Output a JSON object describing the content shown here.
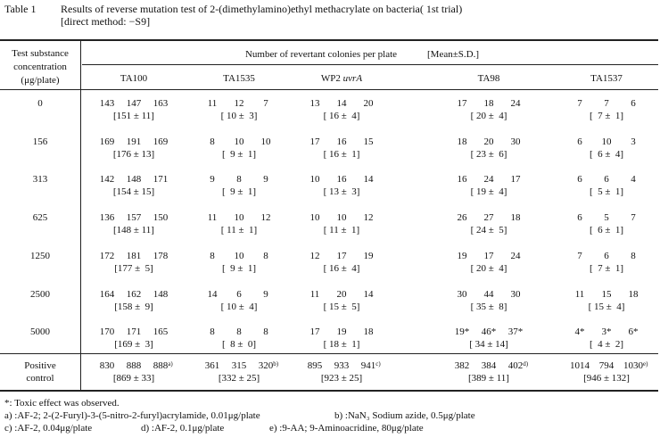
{
  "caption": {
    "label": "Table 1",
    "title": "Results of reverse mutation test of 2-(dimethylamino)ethyl methacrylate on bacteria( 1st trial)",
    "subtitle": "[direct method: −S9]"
  },
  "header": {
    "concentration": [
      "Test substance",
      "concentration",
      "(μg/plate)"
    ],
    "group": "Number of revertant colonies per plate",
    "stat": "[Mean±S.D.]",
    "strains": [
      {
        "name": "TA100"
      },
      {
        "name": "TA1535"
      },
      {
        "name": "WP2",
        "italic": "uvrA"
      },
      {
        "name": "TA98"
      },
      {
        "name": "TA1537"
      }
    ]
  },
  "rows": [
    {
      "concentration": "0",
      "cells": [
        {
          "counts": [
            "143",
            "147",
            "163"
          ],
          "mean": "[151 ± 11]"
        },
        {
          "counts": [
            "11",
            "12",
            "7"
          ],
          "mean": "[ 10 ±  3]"
        },
        {
          "counts": [
            "13",
            "14",
            "20"
          ],
          "mean": "[ 16 ±  4]"
        },
        {
          "counts": [
            "17",
            "18",
            "24"
          ],
          "mean": "[ 20 ±  4]"
        },
        {
          "counts": [
            "7",
            "7",
            "6"
          ],
          "mean": "[  7 ±  1]"
        }
      ]
    },
    {
      "concentration": "156",
      "cells": [
        {
          "counts": [
            "169",
            "191",
            "169"
          ],
          "mean": "[176 ± 13]"
        },
        {
          "counts": [
            "8",
            "10",
            "10"
          ],
          "mean": "[  9 ±  1]"
        },
        {
          "counts": [
            "17",
            "16",
            "15"
          ],
          "mean": "[ 16 ±  1]"
        },
        {
          "counts": [
            "18",
            "20",
            "30"
          ],
          "mean": "[ 23 ±  6]"
        },
        {
          "counts": [
            "6",
            "10",
            "3"
          ],
          "mean": "[  6 ±  4]"
        }
      ]
    },
    {
      "concentration": "313",
      "cells": [
        {
          "counts": [
            "142",
            "148",
            "171"
          ],
          "mean": "[154 ± 15]"
        },
        {
          "counts": [
            "9",
            "8",
            "9"
          ],
          "mean": "[  9 ±  1]"
        },
        {
          "counts": [
            "10",
            "16",
            "14"
          ],
          "mean": "[ 13 ±  3]"
        },
        {
          "counts": [
            "16",
            "24",
            "17"
          ],
          "mean": "[ 19 ±  4]"
        },
        {
          "counts": [
            "6",
            "6",
            "4"
          ],
          "mean": "[  5 ±  1]"
        }
      ]
    },
    {
      "concentration": "625",
      "cells": [
        {
          "counts": [
            "136",
            "157",
            "150"
          ],
          "mean": "[148 ± 11]"
        },
        {
          "counts": [
            "11",
            "10",
            "12"
          ],
          "mean": "[ 11 ±  1]"
        },
        {
          "counts": [
            "10",
            "10",
            "12"
          ],
          "mean": "[ 11 ±  1]"
        },
        {
          "counts": [
            "26",
            "27",
            "18"
          ],
          "mean": "[ 24 ±  5]"
        },
        {
          "counts": [
            "6",
            "5",
            "7"
          ],
          "mean": "[  6 ±  1]"
        }
      ]
    },
    {
      "concentration": "1250",
      "cells": [
        {
          "counts": [
            "172",
            "181",
            "178"
          ],
          "mean": "[177 ±  5]"
        },
        {
          "counts": [
            "8",
            "10",
            "8"
          ],
          "mean": "[  9 ±  1]"
        },
        {
          "counts": [
            "12",
            "17",
            "19"
          ],
          "mean": "[ 16 ±  4]"
        },
        {
          "counts": [
            "19",
            "17",
            "24"
          ],
          "mean": "[ 20 ±  4]"
        },
        {
          "counts": [
            "7",
            "6",
            "8"
          ],
          "mean": "[  7 ±  1]"
        }
      ]
    },
    {
      "concentration": "2500",
      "cells": [
        {
          "counts": [
            "164",
            "162",
            "148"
          ],
          "mean": "[158 ±  9]"
        },
        {
          "counts": [
            "14",
            "6",
            "9"
          ],
          "mean": "[ 10 ±  4]"
        },
        {
          "counts": [
            "11",
            "20",
            "14"
          ],
          "mean": "[ 15 ±  5]"
        },
        {
          "counts": [
            "30",
            "44",
            "30"
          ],
          "mean": "[ 35 ±  8]"
        },
        {
          "counts": [
            "11",
            "15",
            "18"
          ],
          "mean": "[ 15 ±  4]"
        }
      ]
    },
    {
      "concentration": "5000",
      "cells": [
        {
          "counts": [
            "170",
            "171",
            "165"
          ],
          "mean": "[169 ±  3]"
        },
        {
          "counts": [
            "8",
            "8",
            "8"
          ],
          "mean": "[  8 ±  0]"
        },
        {
          "counts": [
            "17",
            "19",
            "18"
          ],
          "mean": "[ 18 ±  1]"
        },
        {
          "counts": [
            "19*",
            "46*",
            "37*"
          ],
          "mean": "[ 34 ± 14]"
        },
        {
          "counts": [
            "4*",
            "3*",
            "6*"
          ],
          "mean": "[  4 ±  2]"
        }
      ]
    }
  ],
  "positive_control": {
    "label": [
      "Positive",
      "control"
    ],
    "cells": [
      {
        "counts": [
          "830",
          "888",
          "888"
        ],
        "note": "a)",
        "mean": "[869 ± 33]"
      },
      {
        "counts": [
          "361",
          "315",
          "320"
        ],
        "note": "b)",
        "mean": "[332 ± 25]"
      },
      {
        "counts": [
          "895",
          "933",
          "941"
        ],
        "note": "c)",
        "mean": "[923 ± 25]"
      },
      {
        "counts": [
          "382",
          "384",
          "402"
        ],
        "note": "d)",
        "mean": "[389 ± 11]"
      },
      {
        "counts": [
          "1014",
          "794",
          "1030"
        ],
        "note": "e)",
        "mean": "[946 ± 132]"
      }
    ]
  },
  "footnotes": [
    "*: Toxic effect was observed.",
    "a) :AF-2; 2-(2-Furyl)-3-(5-nitro-2-furyl)acrylamide, 0.01μg/plate",
    "b) :NaN₃ Sodium azide, 0.5μg/plate",
    "c) :AF-2, 0.04μg/plate",
    "d) :AF-2, 0.1μg/plate",
    "e) :9-AA; 9-Aminoacridine, 80μg/plate"
  ]
}
